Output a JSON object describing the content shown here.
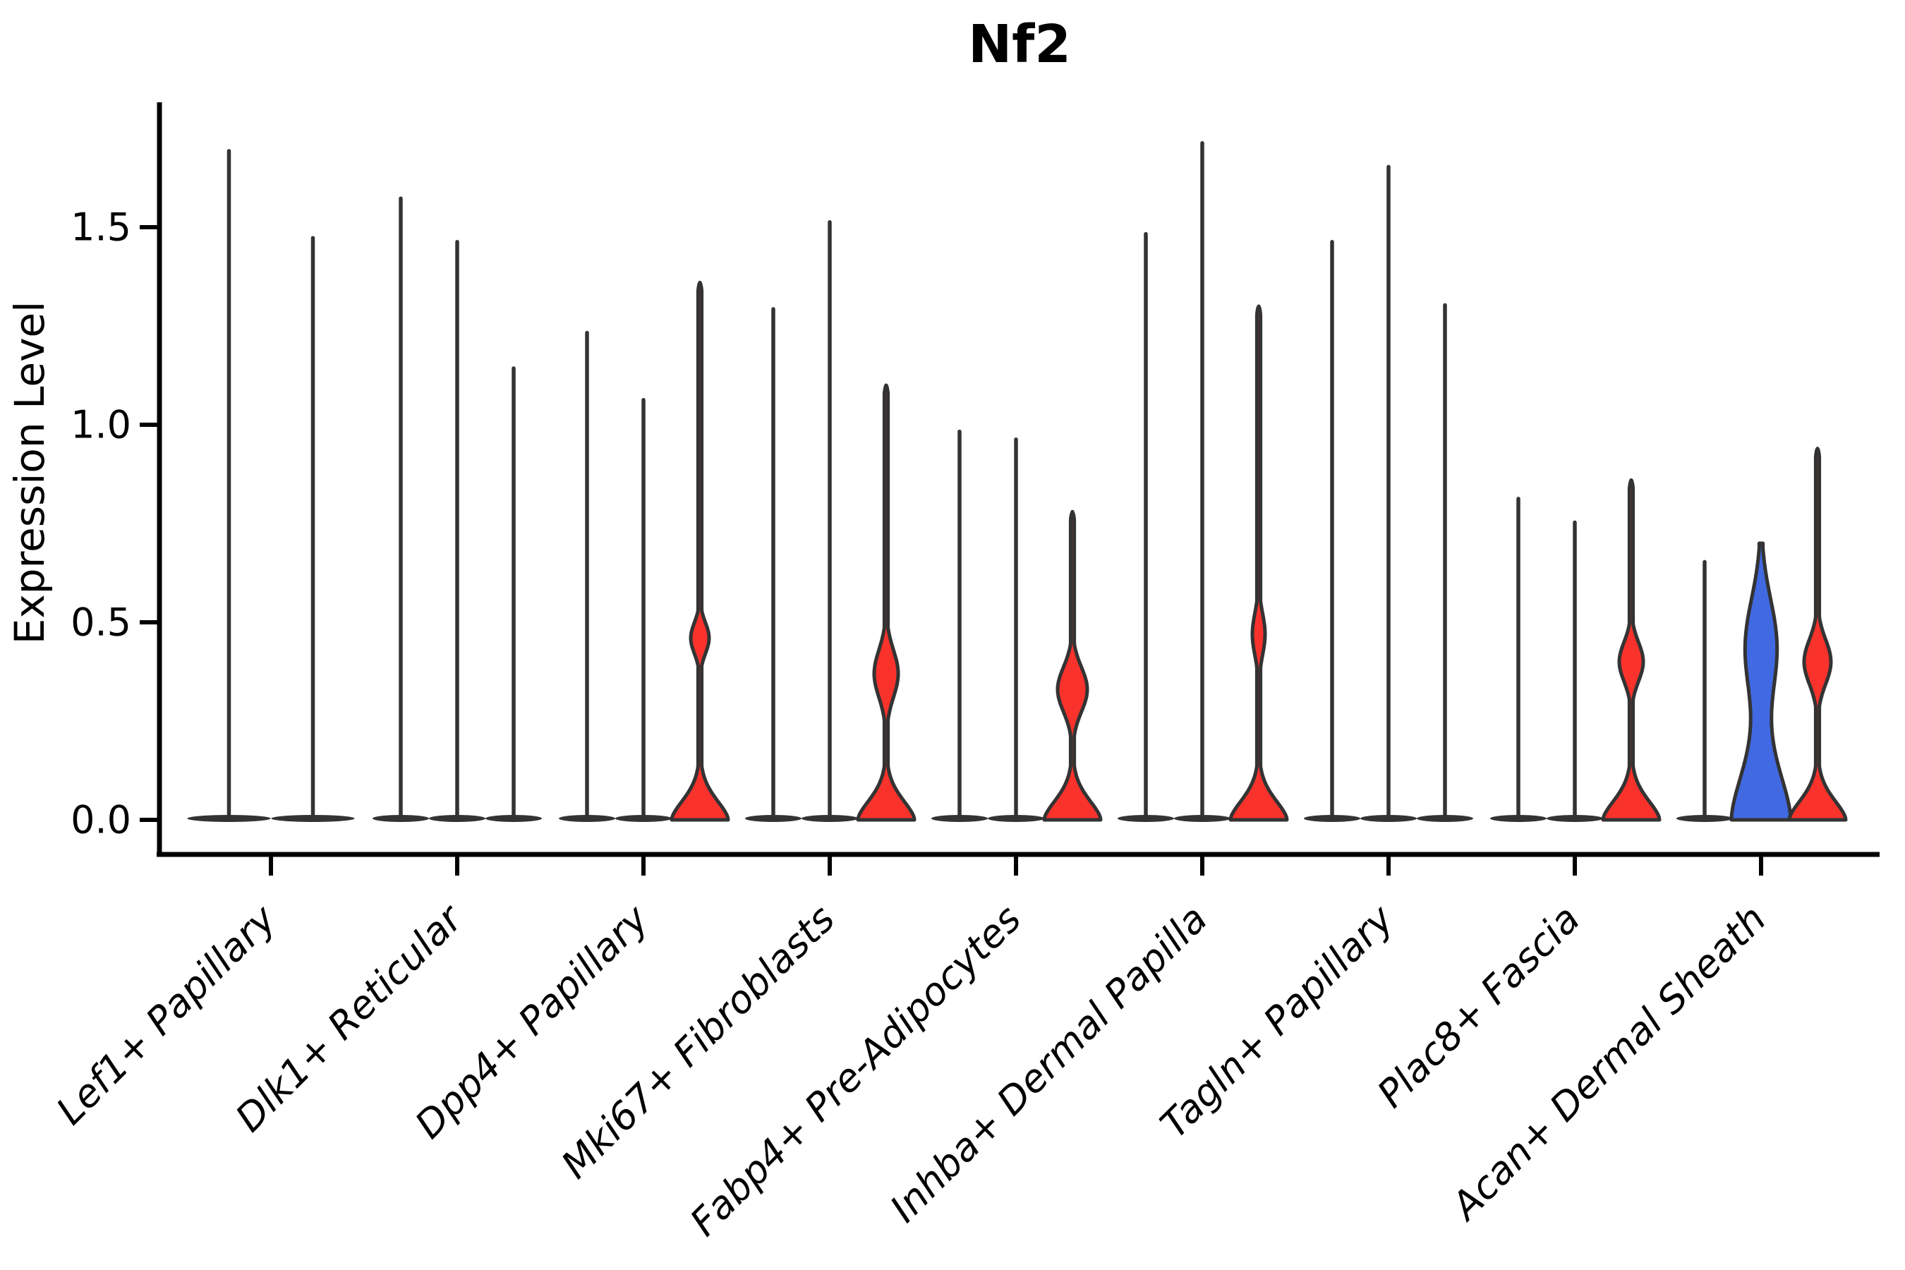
{
  "chart_data": {
    "type": "violin",
    "title": "Nf2",
    "ylabel": "Expression Level",
    "xlabel": "",
    "ylim": [
      -0.09,
      1.82
    ],
    "grid": false,
    "legend_position": "none",
    "yticks": [
      {
        "label": "0.0",
        "value": 0.0
      },
      {
        "label": "0.5",
        "value": 0.5
      },
      {
        "label": "1.0",
        "value": 1.0
      },
      {
        "label": "1.5",
        "value": 1.5
      }
    ],
    "categories": [
      "Lef1+ Papillary",
      "Dlk1+ Reticular",
      "Dpp4+ Papillary",
      "Mki67+ Fibroblasts",
      "Fabp4+ Pre-Adipocytes",
      "Inhba+ Dermal Papilla",
      "Tagln+ Papillary",
      "Plac8+ Fascia",
      "Acan+ Dermal Sheath"
    ],
    "colors": {
      "red": "#F9322C",
      "blue": "#4169E1",
      "outline": "#333333",
      "axis": "#000000",
      "text": "#000000",
      "background": "#ffffff"
    },
    "groups": [
      {
        "violins": [
          {
            "offset": -59.5,
            "style": "line",
            "peak": 1.7,
            "base_halfwidth": 59
          },
          {
            "offset": 59.5,
            "style": "line",
            "peak": 1.48,
            "base_halfwidth": 59
          }
        ]
      },
      {
        "violins": [
          {
            "offset": -80,
            "style": "line",
            "peak": 1.58,
            "base_halfwidth": 40
          },
          {
            "offset": 0,
            "style": "line",
            "peak": 1.47,
            "base_halfwidth": 40
          },
          {
            "offset": 80,
            "style": "line",
            "peak": 1.15,
            "base_halfwidth": 40
          }
        ]
      },
      {
        "violins": [
          {
            "offset": -80,
            "style": "line",
            "peak": 1.24,
            "base_halfwidth": 40
          },
          {
            "offset": 0,
            "style": "line",
            "peak": 1.07,
            "base_halfwidth": 40
          },
          {
            "offset": 80,
            "style": "filled-red",
            "peak": 1.36,
            "base": {
              "halfwidth": 40,
              "vscale": 0.075,
              "power": 1.7
            },
            "lens": {
              "center": 0.46,
              "halfwidth": 13,
              "sigma": 0.055
            }
          }
        ]
      },
      {
        "violins": [
          {
            "offset": -80,
            "style": "line",
            "peak": 1.3,
            "base_halfwidth": 40
          },
          {
            "offset": 0,
            "style": "line",
            "peak": 1.52,
            "base_halfwidth": 40
          },
          {
            "offset": 80,
            "style": "filled-red",
            "peak": 1.1,
            "base": {
              "halfwidth": 40,
              "vscale": 0.075,
              "power": 1.7
            },
            "lens": {
              "center": 0.37,
              "halfwidth": 17,
              "sigma": 0.085
            }
          }
        ]
      },
      {
        "violins": [
          {
            "offset": -80,
            "style": "line",
            "peak": 0.99,
            "base_halfwidth": 40
          },
          {
            "offset": 0,
            "style": "line",
            "peak": 0.97,
            "base_halfwidth": 40
          },
          {
            "offset": 80,
            "style": "filled-red",
            "peak": 0.78,
            "base": {
              "halfwidth": 40,
              "vscale": 0.075,
              "power": 1.7
            },
            "lens": {
              "center": 0.33,
              "halfwidth": 21,
              "sigma": 0.08
            }
          }
        ]
      },
      {
        "violins": [
          {
            "offset": -80,
            "style": "line",
            "peak": 1.49,
            "base_halfwidth": 40
          },
          {
            "offset": 0,
            "style": "line",
            "peak": 1.72,
            "base_halfwidth": 40
          },
          {
            "offset": 80,
            "style": "filled-red",
            "peak": 1.3,
            "base": {
              "halfwidth": 40,
              "vscale": 0.075,
              "power": 1.7
            },
            "lens": {
              "center": 0.47,
              "halfwidth": 9,
              "sigma": 0.075
            }
          }
        ]
      },
      {
        "violins": [
          {
            "offset": -80,
            "style": "line",
            "peak": 1.47,
            "base_halfwidth": 40
          },
          {
            "offset": 0,
            "style": "line",
            "peak": 1.66,
            "base_halfwidth": 40
          },
          {
            "offset": 80,
            "style": "line",
            "peak": 1.31,
            "base_halfwidth": 40
          }
        ]
      },
      {
        "violins": [
          {
            "offset": -80,
            "style": "line",
            "peak": 0.82,
            "base_halfwidth": 40
          },
          {
            "offset": 0,
            "style": "line",
            "peak": 0.76,
            "base_halfwidth": 40
          },
          {
            "offset": 80,
            "style": "filled-red",
            "peak": 0.86,
            "base": {
              "halfwidth": 40,
              "vscale": 0.075,
              "power": 1.7
            },
            "lens": {
              "center": 0.4,
              "halfwidth": 17,
              "sigma": 0.07
            }
          }
        ]
      },
      {
        "violins": [
          {
            "offset": -80,
            "style": "line",
            "peak": 0.66,
            "base_halfwidth": 40
          },
          {
            "offset": 0,
            "style": "filled-blue",
            "peak": 0.7,
            "trimmed": true,
            "base": {
              "halfwidth": 42,
              "vscale": 0.19,
              "power": 1.7
            },
            "lens": {
              "center": 0.44,
              "halfwidth": 22,
              "sigma": 0.17
            }
          },
          {
            "offset": 80,
            "style": "filled-red",
            "peak": 0.94,
            "base": {
              "halfwidth": 40,
              "vscale": 0.075,
              "power": 1.7
            },
            "lens": {
              "center": 0.4,
              "halfwidth": 19,
              "sigma": 0.08
            }
          }
        ]
      }
    ]
  }
}
